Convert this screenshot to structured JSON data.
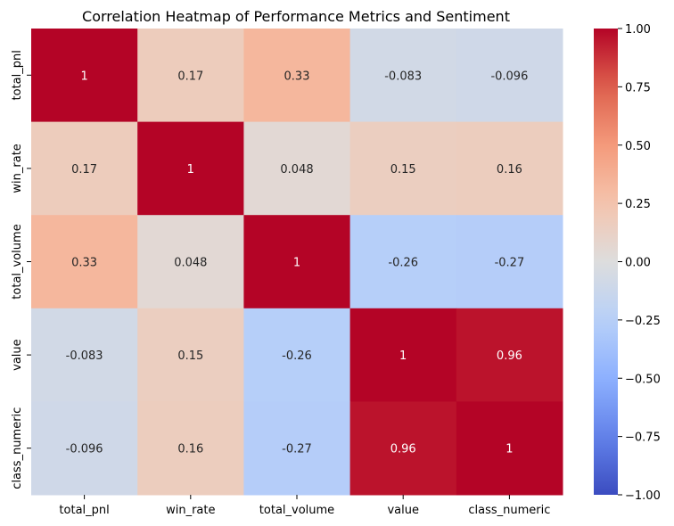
{
  "chart_data": {
    "type": "heatmap",
    "title": "Correlation Heatmap of Performance Metrics and Sentiment",
    "xlabel": "",
    "ylabel": "",
    "categories": [
      "total_pnl",
      "win_rate",
      "total_volume",
      "value",
      "class_numeric"
    ],
    "rows": [
      "total_pnl",
      "win_rate",
      "total_volume",
      "value",
      "class_numeric"
    ],
    "values": [
      [
        1,
        0.17,
        0.33,
        -0.083,
        -0.096
      ],
      [
        0.17,
        1,
        0.048,
        0.15,
        0.16
      ],
      [
        0.33,
        0.048,
        1,
        -0.26,
        -0.27
      ],
      [
        -0.083,
        0.15,
        -0.26,
        1,
        0.96
      ],
      [
        -0.096,
        0.16,
        -0.27,
        0.96,
        1
      ]
    ],
    "value_labels": [
      [
        "1",
        "0.17",
        "0.33",
        "-0.083",
        "-0.096"
      ],
      [
        "0.17",
        "1",
        "0.048",
        "0.15",
        "0.16"
      ],
      [
        "0.33",
        "0.048",
        "1",
        "-0.26",
        "-0.27"
      ],
      [
        "-0.083",
        "0.15",
        "-0.26",
        "1",
        "0.96"
      ],
      [
        "-0.096",
        "0.16",
        "-0.27",
        "0.96",
        "1"
      ]
    ],
    "colorbar": {
      "vmin": -1,
      "vmax": 1,
      "ticks": [
        1.0,
        0.75,
        0.5,
        0.25,
        0.0,
        -0.25,
        -0.5,
        -0.75,
        -1.0
      ],
      "tick_labels": [
        "1.00",
        "0.75",
        "0.50",
        "0.25",
        "0.00",
        "−0.25",
        "−0.50",
        "−0.75",
        "−1.00"
      ]
    },
    "colormap": "coolwarm",
    "grid": false
  }
}
